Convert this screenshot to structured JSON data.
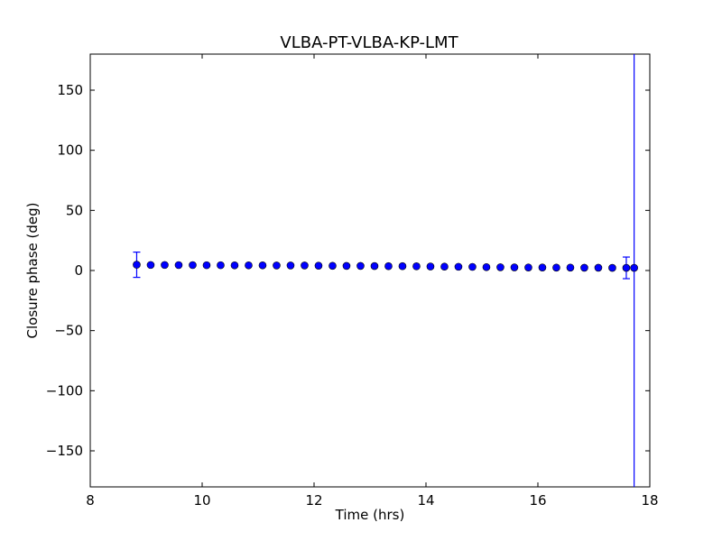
{
  "chart_data": {
    "type": "scatter",
    "title": "VLBA-PT-VLBA-KP-LMT",
    "xlabel": "Time (hrs)",
    "ylabel": "Closure phase (deg)",
    "xlim": [
      8,
      18
    ],
    "ylim": [
      -180,
      180
    ],
    "xticks": [
      8,
      10,
      12,
      14,
      16,
      18
    ],
    "xtick_labels": [
      "8",
      "10",
      "12",
      "14",
      "16",
      "18"
    ],
    "yticks": [
      150,
      100,
      50,
      0,
      -50,
      -100,
      -150
    ],
    "ytick_labels": [
      "150",
      "100",
      "50",
      "0",
      "−50",
      "−100",
      "−150"
    ],
    "grid": false,
    "legend": "none",
    "marker_color": "#0000ff",
    "marker_edge_color": "#000000",
    "series": [
      {
        "points": [
          {
            "x": 8.83,
            "y": 4.8,
            "err": 10.5
          },
          {
            "x": 9.08,
            "y": 4.6
          },
          {
            "x": 9.33,
            "y": 4.6
          },
          {
            "x": 9.58,
            "y": 4.5
          },
          {
            "x": 9.83,
            "y": 4.5
          },
          {
            "x": 10.08,
            "y": 4.4
          },
          {
            "x": 10.33,
            "y": 4.4
          },
          {
            "x": 10.58,
            "y": 4.3
          },
          {
            "x": 10.83,
            "y": 4.3
          },
          {
            "x": 11.08,
            "y": 4.3
          },
          {
            "x": 11.33,
            "y": 4.2
          },
          {
            "x": 11.58,
            "y": 4.2
          },
          {
            "x": 11.83,
            "y": 4.2
          },
          {
            "x": 12.08,
            "y": 4.0
          },
          {
            "x": 12.33,
            "y": 3.9
          },
          {
            "x": 12.58,
            "y": 3.8
          },
          {
            "x": 12.83,
            "y": 3.8
          },
          {
            "x": 13.08,
            "y": 3.7
          },
          {
            "x": 13.33,
            "y": 3.6
          },
          {
            "x": 13.58,
            "y": 3.6
          },
          {
            "x": 13.83,
            "y": 3.5
          },
          {
            "x": 14.08,
            "y": 3.3
          },
          {
            "x": 14.33,
            "y": 3.2
          },
          {
            "x": 14.58,
            "y": 3.1
          },
          {
            "x": 14.83,
            "y": 3.0
          },
          {
            "x": 15.08,
            "y": 2.8
          },
          {
            "x": 15.33,
            "y": 2.7
          },
          {
            "x": 15.58,
            "y": 2.6
          },
          {
            "x": 15.83,
            "y": 2.5
          },
          {
            "x": 16.08,
            "y": 2.5
          },
          {
            "x": 16.33,
            "y": 2.4
          },
          {
            "x": 16.58,
            "y": 2.4
          },
          {
            "x": 16.83,
            "y": 2.3
          },
          {
            "x": 17.08,
            "y": 2.3
          },
          {
            "x": 17.33,
            "y": 2.2
          },
          {
            "x": 17.58,
            "y": 2.2,
            "err": 9.0
          },
          {
            "x": 17.72,
            "y": 2.2,
            "err": 500
          }
        ]
      }
    ]
  }
}
